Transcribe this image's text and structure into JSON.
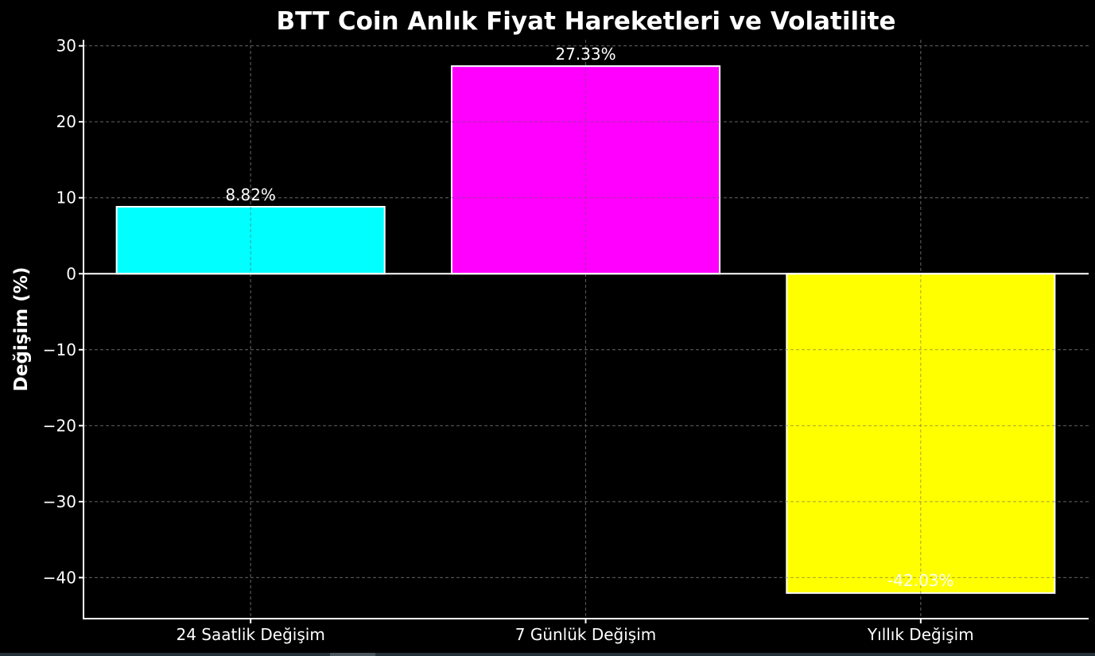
{
  "chart_data": {
    "type": "bar",
    "title": "BTT Coin Anlık Fiyat Hareketleri ve Volatilite",
    "xlabel": "",
    "ylabel": "Değişim (%)",
    "categories": [
      "24 Saatlik Değişim",
      "7 Günlük Değişim",
      "Yıllık Değişim"
    ],
    "values": [
      8.82,
      27.33,
      -42.03
    ],
    "value_labels": [
      "8.82%",
      "27.33%",
      "-42.03%"
    ],
    "colors": [
      "#00ffff",
      "#ff00ff",
      "#ffff00"
    ],
    "ylim": [
      -45.4,
      30.8
    ],
    "yticks": [
      30,
      20,
      10,
      0,
      -10,
      -20,
      -30,
      -40
    ],
    "ytick_labels": [
      "30",
      "20",
      "10",
      "0",
      "−10",
      "−20",
      "−30",
      "−40"
    ],
    "grid": true,
    "legend": null,
    "background": "#000000",
    "text_color": "#ffffff",
    "zero_line": true
  }
}
